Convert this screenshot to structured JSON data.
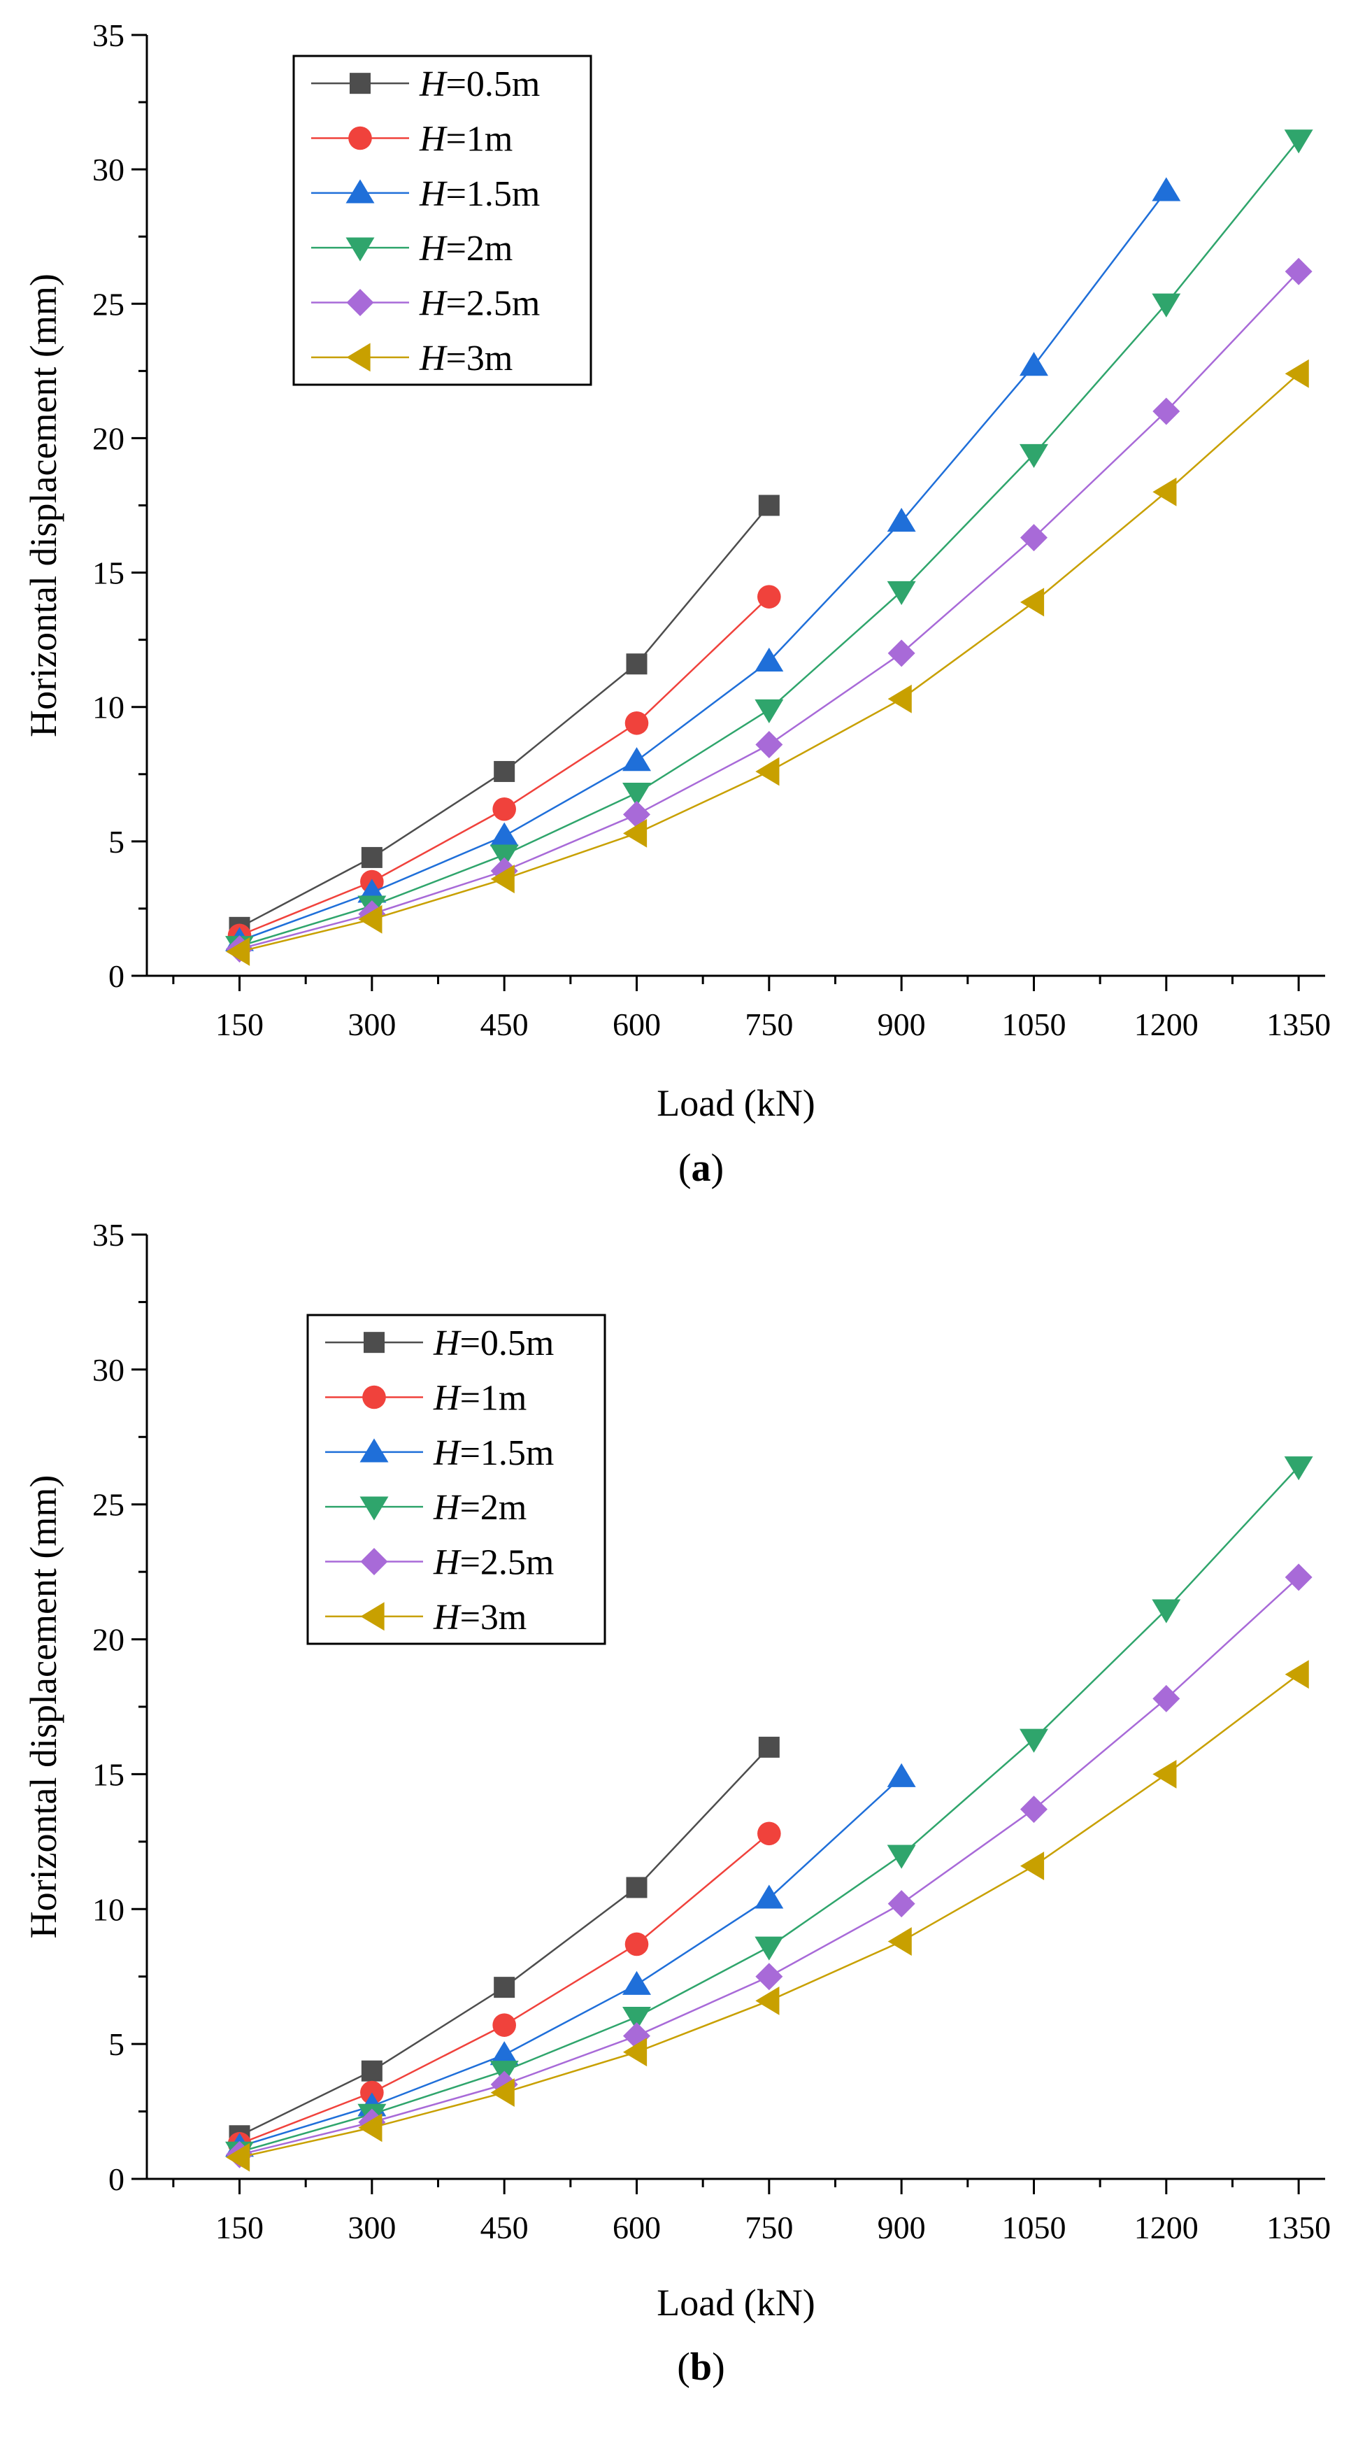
{
  "chart_data": [
    {
      "panel_label": "a",
      "type": "line",
      "xlabel": "Load (kN)",
      "ylabel": "Horizontal displacement (mm)",
      "x": [
        150,
        300,
        450,
        600,
        750,
        900,
        1050,
        1200,
        1350
      ],
      "x_tick_labels": [
        "150",
        "300",
        "450",
        "600",
        "750",
        "900",
        "1050",
        "1200",
        "1350"
      ],
      "xlim": [
        45,
        1380
      ],
      "ylim": [
        0,
        35
      ],
      "y_ticks": [
        0,
        5,
        10,
        15,
        20,
        25,
        30,
        35
      ],
      "y_tick_labels": [
        "0",
        "5",
        "10",
        "15",
        "20",
        "25",
        "30",
        "35"
      ],
      "legend_position": "top-left",
      "series": [
        {
          "name": "H=0.5m",
          "h_var": "H",
          "h_value": "=0.5m",
          "color": "#4d4d4d",
          "marker": "square",
          "x": [
            150,
            300,
            450,
            600,
            750
          ],
          "values": [
            1.8,
            4.4,
            7.6,
            11.6,
            17.5
          ]
        },
        {
          "name": "H=1m",
          "h_var": "H",
          "h_value": "=1m",
          "color": "#f0423c",
          "marker": "circle",
          "x": [
            150,
            300,
            450,
            600,
            750
          ],
          "values": [
            1.5,
            3.5,
            6.2,
            9.4,
            14.1
          ]
        },
        {
          "name": "H=1.5m",
          "h_var": "H",
          "h_value": "=1.5m",
          "color": "#1f6fd9",
          "marker": "triangle-up",
          "x": [
            150,
            300,
            450,
            600,
            750,
            900,
            1050,
            1200
          ],
          "values": [
            1.3,
            3.1,
            5.2,
            8.0,
            11.7,
            16.9,
            22.7,
            29.2
          ]
        },
        {
          "name": "H=2m",
          "h_var": "H",
          "h_value": "=2m",
          "color": "#2fa56c",
          "marker": "triangle-down",
          "x": [
            150,
            300,
            450,
            600,
            750,
            900,
            1050,
            1200,
            1350
          ],
          "values": [
            1.1,
            2.6,
            4.5,
            6.8,
            9.9,
            14.3,
            19.4,
            25.0,
            31.1
          ]
        },
        {
          "name": "H=2.5m",
          "h_var": "H",
          "h_value": "=2.5m",
          "color": "#a86ad8",
          "marker": "diamond",
          "x": [
            150,
            300,
            450,
            600,
            750,
            900,
            1050,
            1200,
            1350
          ],
          "values": [
            1.0,
            2.3,
            3.9,
            6.0,
            8.6,
            12.0,
            16.3,
            21.0,
            26.2
          ]
        },
        {
          "name": "H=3m",
          "h_var": "H",
          "h_value": "=3m",
          "color": "#c8a000",
          "marker": "triangle-left",
          "x": [
            150,
            300,
            450,
            600,
            750,
            900,
            1050,
            1200,
            1350
          ],
          "values": [
            0.9,
            2.1,
            3.6,
            5.3,
            7.6,
            10.3,
            13.9,
            18.0,
            22.4
          ]
        }
      ]
    },
    {
      "panel_label": "b",
      "type": "line",
      "xlabel": "Load (kN)",
      "ylabel": "Horizontal displacement (mm)",
      "x": [
        150,
        300,
        450,
        600,
        750,
        900,
        1050,
        1200,
        1350
      ],
      "x_tick_labels": [
        "150",
        "300",
        "450",
        "600",
        "750",
        "900",
        "1050",
        "1200",
        "1350"
      ],
      "xlim": [
        45,
        1380
      ],
      "ylim": [
        0,
        35
      ],
      "y_ticks": [
        0,
        5,
        10,
        15,
        20,
        25,
        30,
        35
      ],
      "y_tick_labels": [
        "0",
        "5",
        "10",
        "15",
        "20",
        "25",
        "30",
        "35"
      ],
      "legend_position": "top-left",
      "series": [
        {
          "name": "H=0.5m",
          "h_var": "H",
          "h_value": "=0.5m",
          "color": "#4d4d4d",
          "marker": "square",
          "x": [
            150,
            300,
            450,
            600,
            750
          ],
          "values": [
            1.6,
            4.0,
            7.1,
            10.8,
            16.0
          ]
        },
        {
          "name": "H=1m",
          "h_var": "H",
          "h_value": "=1m",
          "color": "#f0423c",
          "marker": "circle",
          "x": [
            150,
            300,
            450,
            600,
            750
          ],
          "values": [
            1.3,
            3.2,
            5.7,
            8.7,
            12.8
          ]
        },
        {
          "name": "H=1.5m",
          "h_var": "H",
          "h_value": "=1.5m",
          "color": "#1f6fd9",
          "marker": "triangle-up",
          "x": [
            150,
            300,
            450,
            600,
            750,
            900
          ],
          "values": [
            1.2,
            2.7,
            4.6,
            7.2,
            10.4,
            14.9
          ]
        },
        {
          "name": "H=2m",
          "h_var": "H",
          "h_value": "=2m",
          "color": "#2fa56c",
          "marker": "triangle-down",
          "x": [
            150,
            300,
            450,
            600,
            750,
            900,
            1050,
            1200,
            1350
          ],
          "values": [
            1.0,
            2.4,
            4.0,
            6.0,
            8.6,
            12.0,
            16.3,
            21.1,
            26.4
          ]
        },
        {
          "name": "H=2.5m",
          "h_var": "H",
          "h_value": "=2.5m",
          "color": "#a86ad8",
          "marker": "diamond",
          "x": [
            150,
            300,
            450,
            600,
            750,
            900,
            1050,
            1200,
            1350
          ],
          "values": [
            0.9,
            2.1,
            3.5,
            5.3,
            7.5,
            10.2,
            13.7,
            17.8,
            22.3
          ]
        },
        {
          "name": "H=3m",
          "h_var": "H",
          "h_value": "=3m",
          "color": "#c8a000",
          "marker": "triangle-left",
          "x": [
            150,
            300,
            450,
            600,
            750,
            900,
            1050,
            1200,
            1350
          ],
          "values": [
            0.8,
            1.9,
            3.2,
            4.7,
            6.6,
            8.8,
            11.6,
            15.0,
            18.7
          ]
        }
      ]
    }
  ]
}
